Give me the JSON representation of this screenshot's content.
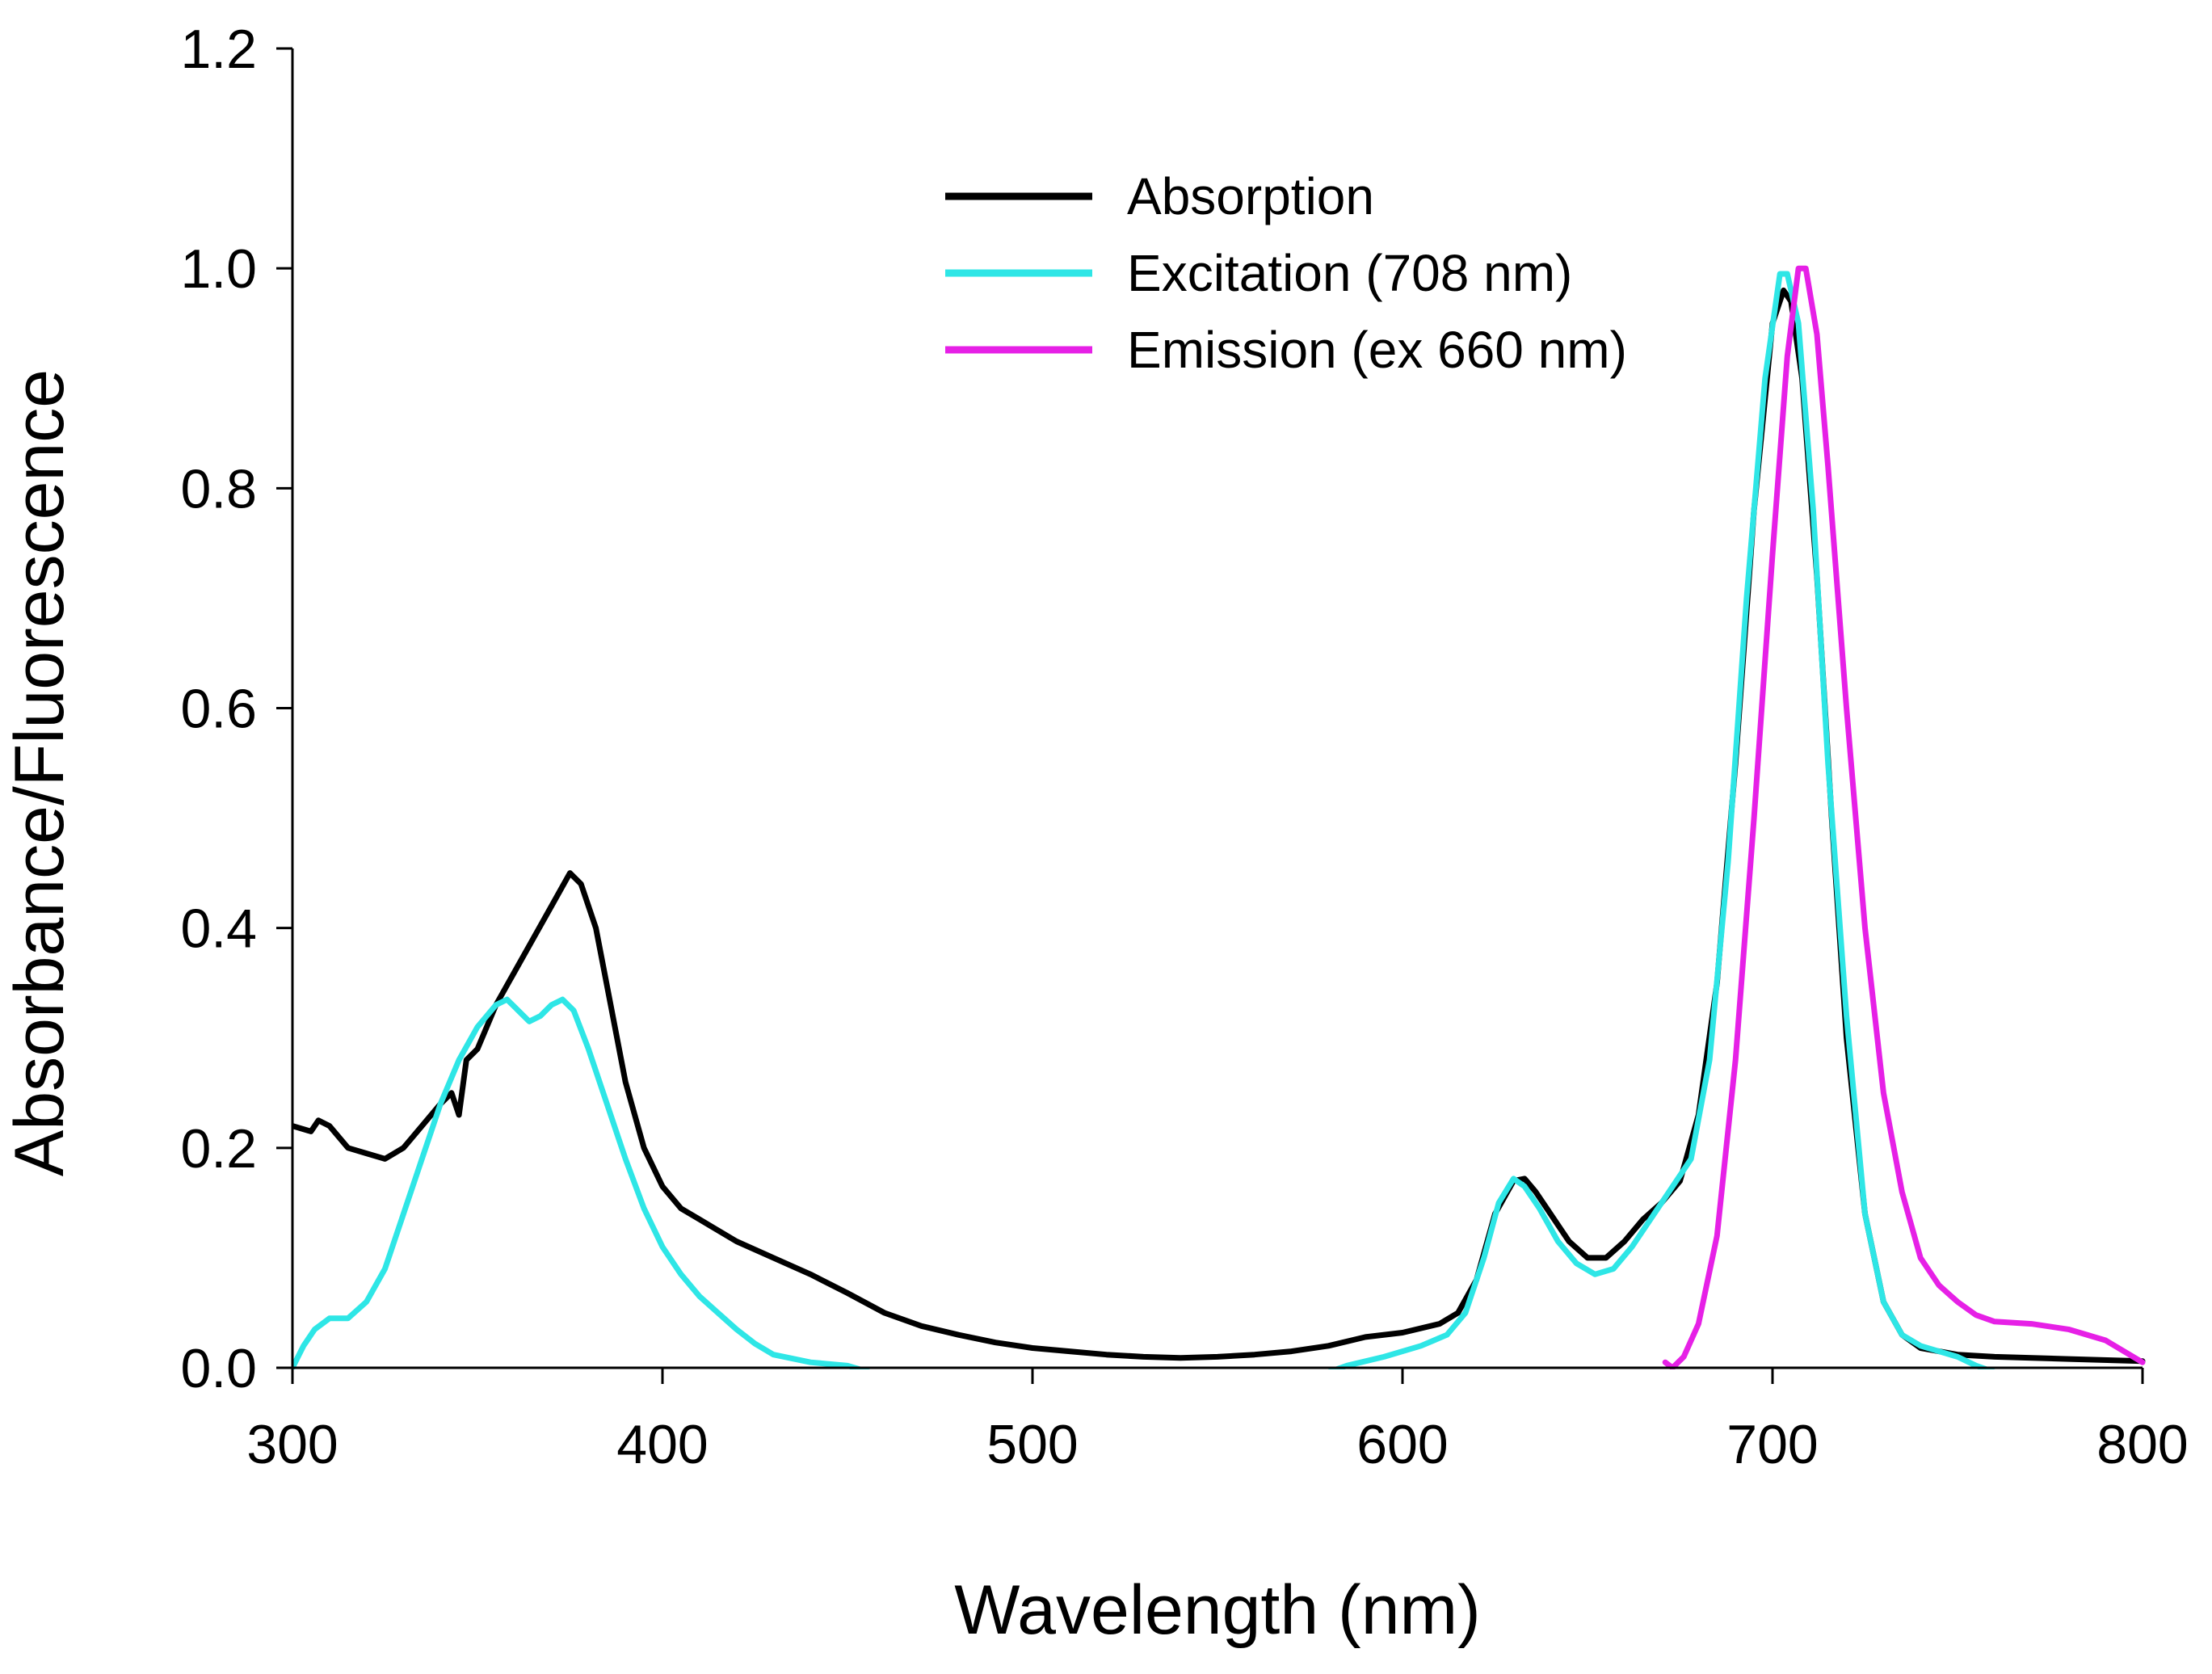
{
  "chart_data": {
    "type": "line",
    "title": "",
    "xlabel": "Wavelength (nm)",
    "ylabel": "Absorbance/Fluorescence",
    "xlim": [
      300,
      800
    ],
    "ylim": [
      0,
      1.2
    ],
    "xticks": [
      300,
      400,
      500,
      600,
      700,
      800
    ],
    "xtick_labels": [
      "300",
      "400",
      "500",
      "600",
      "700",
      "800"
    ],
    "yticks": [
      0,
      0.2,
      0.4,
      0.6,
      0.8,
      1.0,
      1.2
    ],
    "ytick_labels": [
      "0.0",
      "0.2",
      "0.4",
      "0.6",
      "0.8",
      "1.0",
      "1.2"
    ],
    "grid": false,
    "legend_position": "top-right",
    "series": [
      {
        "name": "Absorption",
        "color": "#000000",
        "points": [
          [
            300,
            0.22
          ],
          [
            305,
            0.215
          ],
          [
            307,
            0.225
          ],
          [
            310,
            0.22
          ],
          [
            315,
            0.2
          ],
          [
            320,
            0.195
          ],
          [
            325,
            0.19
          ],
          [
            330,
            0.2
          ],
          [
            335,
            0.22
          ],
          [
            340,
            0.24
          ],
          [
            343,
            0.25
          ],
          [
            345,
            0.23
          ],
          [
            347,
            0.28
          ],
          [
            350,
            0.29
          ],
          [
            355,
            0.33
          ],
          [
            360,
            0.36
          ],
          [
            365,
            0.39
          ],
          [
            370,
            0.42
          ],
          [
            375,
            0.45
          ],
          [
            378,
            0.44
          ],
          [
            382,
            0.4
          ],
          [
            386,
            0.33
          ],
          [
            390,
            0.26
          ],
          [
            395,
            0.2
          ],
          [
            400,
            0.165
          ],
          [
            405,
            0.145
          ],
          [
            410,
            0.135
          ],
          [
            415,
            0.125
          ],
          [
            420,
            0.115
          ],
          [
            430,
            0.1
          ],
          [
            440,
            0.085
          ],
          [
            450,
            0.068
          ],
          [
            460,
            0.05
          ],
          [
            470,
            0.038
          ],
          [
            480,
            0.03
          ],
          [
            490,
            0.023
          ],
          [
            500,
            0.018
          ],
          [
            510,
            0.015
          ],
          [
            520,
            0.012
          ],
          [
            530,
            0.01
          ],
          [
            540,
            0.009
          ],
          [
            550,
            0.01
          ],
          [
            560,
            0.012
          ],
          [
            570,
            0.015
          ],
          [
            580,
            0.02
          ],
          [
            590,
            0.028
          ],
          [
            600,
            0.032
          ],
          [
            610,
            0.04
          ],
          [
            615,
            0.05
          ],
          [
            620,
            0.08
          ],
          [
            625,
            0.14
          ],
          [
            630,
            0.17
          ],
          [
            633,
            0.172
          ],
          [
            636,
            0.16
          ],
          [
            640,
            0.14
          ],
          [
            645,
            0.115
          ],
          [
            650,
            0.1
          ],
          [
            655,
            0.1
          ],
          [
            660,
            0.115
          ],
          [
            665,
            0.135
          ],
          [
            670,
            0.15
          ],
          [
            675,
            0.17
          ],
          [
            680,
            0.23
          ],
          [
            685,
            0.35
          ],
          [
            690,
            0.55
          ],
          [
            695,
            0.78
          ],
          [
            700,
            0.95
          ],
          [
            703,
            0.98
          ],
          [
            705,
            0.97
          ],
          [
            708,
            0.9
          ],
          [
            712,
            0.72
          ],
          [
            716,
            0.5
          ],
          [
            720,
            0.3
          ],
          [
            725,
            0.14
          ],
          [
            730,
            0.06
          ],
          [
            735,
            0.03
          ],
          [
            740,
            0.018
          ],
          [
            750,
            0.012
          ],
          [
            760,
            0.01
          ],
          [
            780,
            0.008
          ],
          [
            800,
            0.006
          ]
        ]
      },
      {
        "name": "Excitation (708 nm)",
        "color": "#2ee6e6",
        "segments": [
          [
            [
              300,
              0.0
            ],
            [
              303,
              0.02
            ],
            [
              306,
              0.035
            ],
            [
              310,
              0.045
            ],
            [
              315,
              0.045
            ],
            [
              320,
              0.06
            ],
            [
              325,
              0.09
            ],
            [
              330,
              0.14
            ],
            [
              335,
              0.19
            ],
            [
              340,
              0.24
            ],
            [
              345,
              0.28
            ],
            [
              350,
              0.31
            ],
            [
              355,
              0.33
            ],
            [
              358,
              0.335
            ],
            [
              361,
              0.325
            ],
            [
              364,
              0.315
            ],
            [
              367,
              0.32
            ],
            [
              370,
              0.33
            ],
            [
              373,
              0.335
            ],
            [
              376,
              0.325
            ],
            [
              380,
              0.29
            ],
            [
              385,
              0.24
            ],
            [
              390,
              0.19
            ],
            [
              395,
              0.145
            ],
            [
              400,
              0.11
            ],
            [
              405,
              0.085
            ],
            [
              410,
              0.065
            ],
            [
              415,
              0.05
            ],
            [
              420,
              0.035
            ],
            [
              425,
              0.022
            ],
            [
              430,
              0.012
            ],
            [
              440,
              0.005
            ],
            [
              450,
              0.002
            ],
            [
              460,
              -0.008
            ],
            [
              470,
              -0.01
            ]
          ],
          [
            [
              575,
              -0.01
            ],
            [
              585,
              0.002
            ],
            [
              595,
              0.01
            ],
            [
              605,
              0.02
            ],
            [
              612,
              0.03
            ],
            [
              617,
              0.05
            ],
            [
              622,
              0.1
            ],
            [
              626,
              0.15
            ],
            [
              630,
              0.172
            ],
            [
              633,
              0.165
            ],
            [
              637,
              0.145
            ],
            [
              642,
              0.115
            ],
            [
              647,
              0.095
            ],
            [
              652,
              0.085
            ],
            [
              657,
              0.09
            ],
            [
              662,
              0.11
            ],
            [
              667,
              0.135
            ],
            [
              672,
              0.16
            ],
            [
              678,
              0.19
            ],
            [
              683,
              0.28
            ],
            [
              688,
              0.46
            ],
            [
              693,
              0.7
            ],
            [
              698,
              0.9
            ],
            [
              702,
              0.995
            ],
            [
              704,
              0.995
            ],
            [
              707,
              0.95
            ],
            [
              711,
              0.78
            ],
            [
              715,
              0.55
            ],
            [
              720,
              0.32
            ],
            [
              725,
              0.14
            ],
            [
              730,
              0.06
            ],
            [
              735,
              0.03
            ],
            [
              740,
              0.02
            ],
            [
              750,
              0.01
            ],
            [
              755,
              0.002
            ],
            [
              765,
              -0.01
            ]
          ]
        ]
      },
      {
        "name": "Emission (ex 660 nm)",
        "color": "#e620e6",
        "points": [
          [
            671,
            0.005
          ],
          [
            673,
            0.0
          ],
          [
            676,
            0.01
          ],
          [
            680,
            0.04
          ],
          [
            685,
            0.12
          ],
          [
            690,
            0.28
          ],
          [
            695,
            0.5
          ],
          [
            700,
            0.74
          ],
          [
            704,
            0.92
          ],
          [
            707,
            1.0
          ],
          [
            709,
            1.0
          ],
          [
            712,
            0.94
          ],
          [
            715,
            0.82
          ],
          [
            720,
            0.6
          ],
          [
            725,
            0.4
          ],
          [
            730,
            0.25
          ],
          [
            735,
            0.16
          ],
          [
            740,
            0.1
          ],
          [
            745,
            0.075
          ],
          [
            750,
            0.06
          ],
          [
            755,
            0.048
          ],
          [
            760,
            0.042
          ],
          [
            770,
            0.04
          ],
          [
            780,
            0.035
          ],
          [
            790,
            0.025
          ],
          [
            795,
            0.015
          ],
          [
            800,
            0.005
          ]
        ]
      }
    ]
  }
}
